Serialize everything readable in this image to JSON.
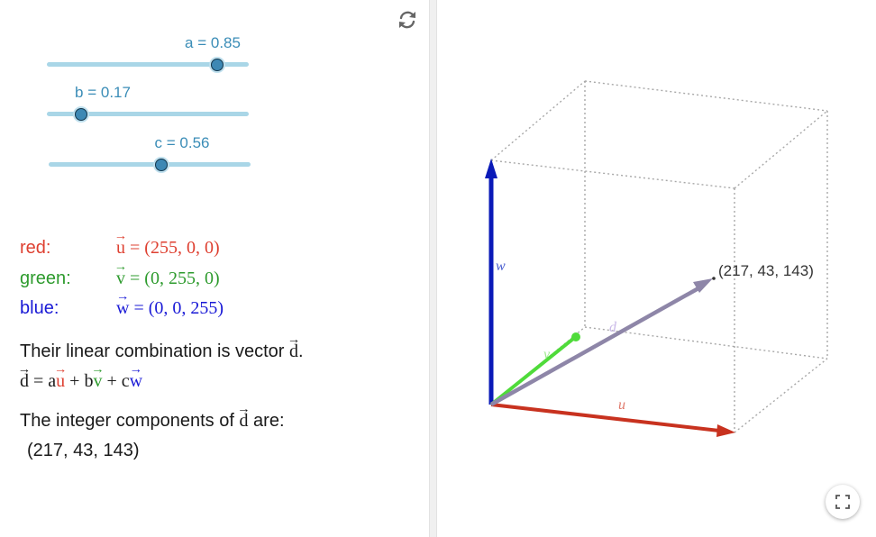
{
  "sliders": [
    {
      "name": "a",
      "label": "a = 0.85",
      "value": 0.85,
      "min": 0,
      "max": 1
    },
    {
      "name": "b",
      "label": "b = 0.17",
      "value": 0.17,
      "min": 0,
      "max": 1
    },
    {
      "name": "c",
      "label": "c = 0.56",
      "value": 0.56,
      "min": 0,
      "max": 1
    }
  ],
  "vectors": {
    "red": {
      "name": "red:",
      "symbol": "u",
      "value": "= (255, 0, 0)"
    },
    "green": {
      "name": "green:",
      "symbol": "v",
      "value": "= (0, 255, 0)"
    },
    "blue": {
      "name": "blue:",
      "symbol": "w",
      "value": "= (0, 0, 255)"
    }
  },
  "combination": {
    "intro": "Their linear combination is vector",
    "intro_symbol": "d",
    "intro_end": ".",
    "eq_symbol": "d",
    "eq": "=",
    "coef_a": "a",
    "u": "u",
    "plus1": "+",
    "coef_b": "b",
    "v": "v",
    "plus2": "+",
    "coef_c": "c",
    "w": "w"
  },
  "components": {
    "prefix": "The integer components of",
    "symbol": "d",
    "suffix": "are:",
    "value": "(217, 43, 143)"
  },
  "graphics": {
    "point_label": "(217, 43, 143)",
    "u_label": "u",
    "v_label": "v",
    "w_label": "w",
    "d_label": "d",
    "colors": {
      "u": "#c8321f",
      "v": "#4fdb3a",
      "w": "#0a1ab8",
      "d": "#8e86a8"
    }
  },
  "icons": {
    "reset": "reset-icon",
    "fullscreen": "fullscreen-icon"
  }
}
